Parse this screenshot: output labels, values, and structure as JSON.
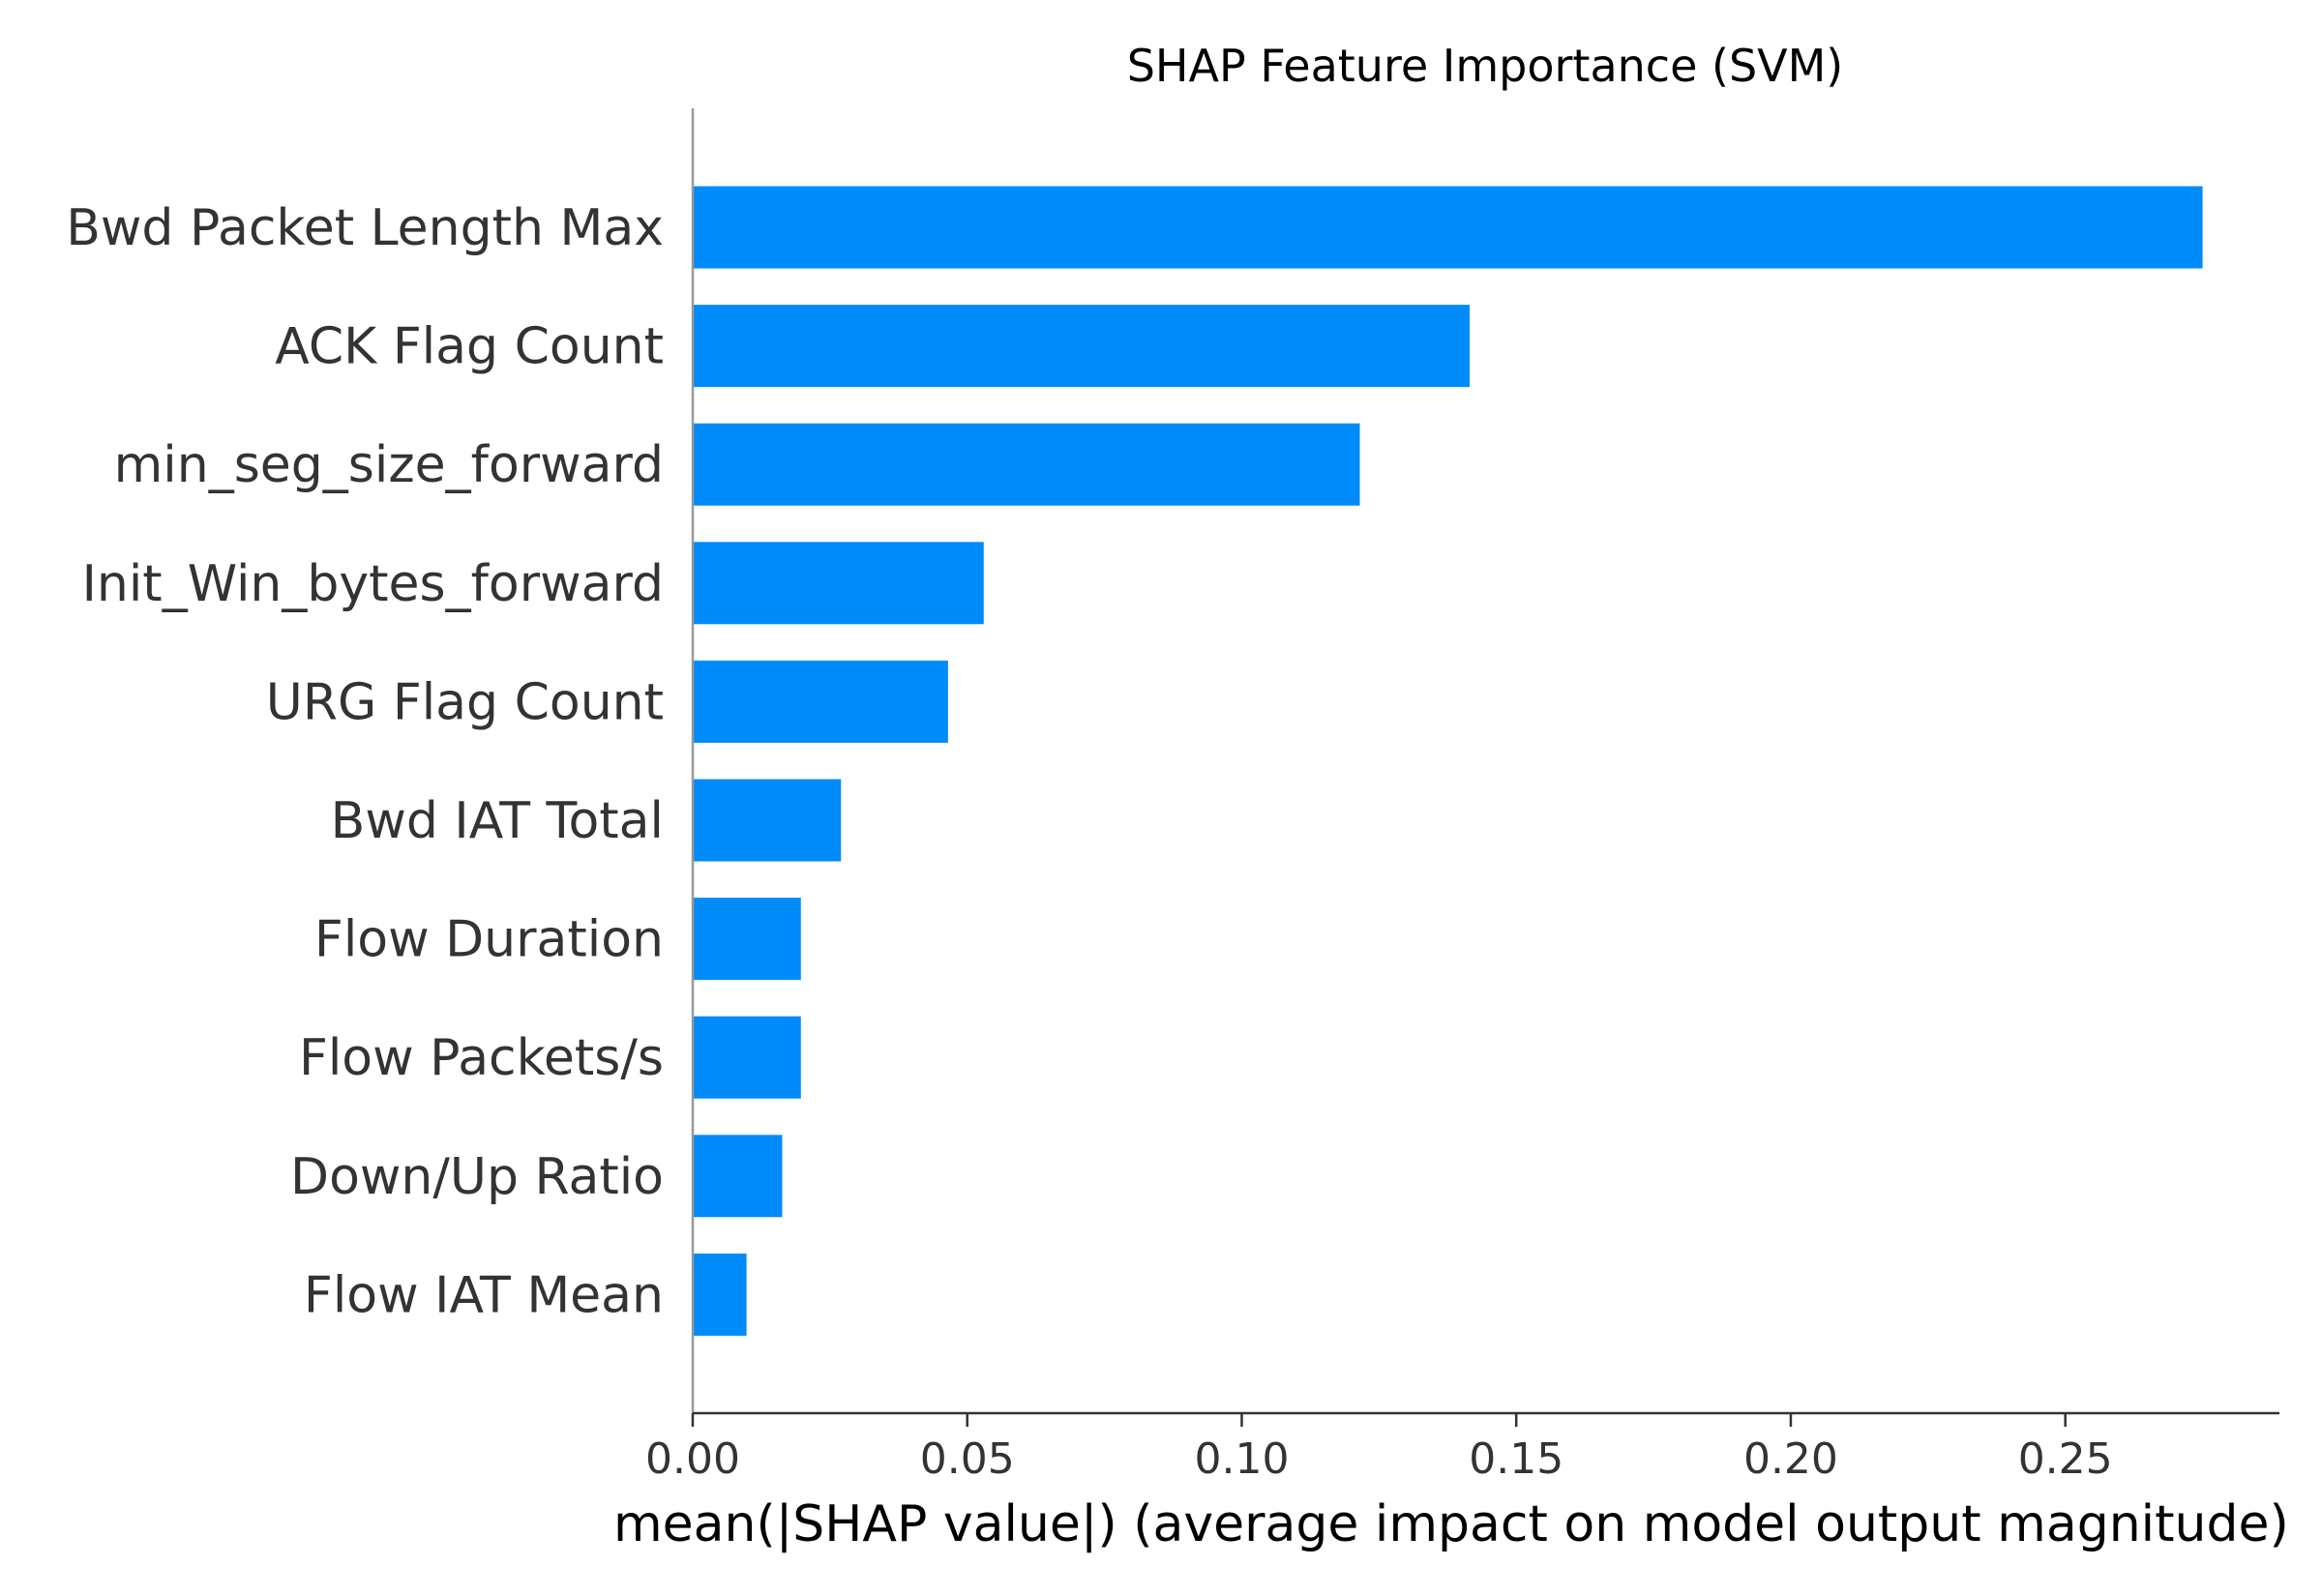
{
  "chart_data": {
    "type": "bar",
    "orientation": "horizontal",
    "title": "SHAP Feature Importance (SVM)",
    "xlabel": "mean(|SHAP value|) (average impact on model output magnitude)",
    "ylabel": "",
    "xlim": [
      0,
      0.289
    ],
    "xticks": [
      0.0,
      0.05,
      0.1,
      0.15,
      0.2,
      0.25
    ],
    "xtick_labels": [
      "0.00",
      "0.05",
      "0.10",
      "0.15",
      "0.20",
      "0.25"
    ],
    "categories": [
      "Bwd Packet Length Max",
      "ACK Flag Count",
      "min_seg_size_forward",
      "Init_Win_bytes_forward",
      "URG Flag Count",
      "Bwd IAT Total",
      "Flow Duration",
      "Flow Packets/s",
      "Down/Up Ratio",
      "Flow IAT Mean"
    ],
    "values": [
      0.275,
      0.1415,
      0.1215,
      0.053,
      0.0465,
      0.027,
      0.0197,
      0.0197,
      0.0163,
      0.0098
    ],
    "bar_color": "#008bfb",
    "grid": false,
    "legend": "none"
  }
}
